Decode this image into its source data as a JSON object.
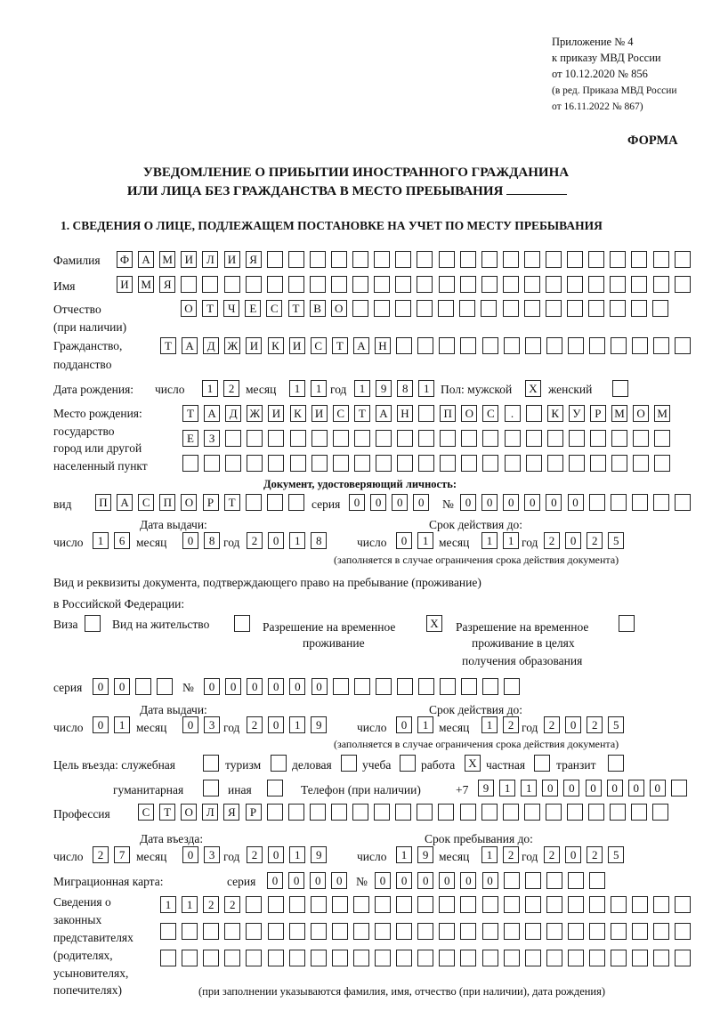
{
  "header": {
    "appendix_line1": "Приложение № 4",
    "appendix_line2": "к приказу МВД России",
    "appendix_line3": "от 10.12.2020 № 856",
    "edition_line1": "(в ред. Приказа МВД России",
    "edition_line2": "от 16.11.2022 № 867)",
    "forma": "ФОРМА",
    "title_line1": "УВЕДОМЛЕНИЕ О ПРИБЫТИИ ИНОСТРАННОГО ГРАЖДАНИНА",
    "title_line2": "ИЛИ ЛИЦА БЕЗ ГРАЖДАНСТВА В МЕСТО ПРЕБЫВАНИЯ"
  },
  "section1": {
    "heading": "1. СВЕДЕНИЯ О ЛИЦЕ, ПОДЛЕЖАЩЕМ ПОСТАНОВКЕ НА УЧЕТ ПО МЕСТУ ПРЕБЫВАНИЯ",
    "labels": {
      "surname": "Фамилия",
      "name": "Имя",
      "patronymic": "Отчество",
      "patronymic_note": "(при наличии)",
      "citizenship": "Гражданство,",
      "citizenship2": "подданство",
      "birth_date": "Дата рождения:",
      "day": "число",
      "month": "месяц",
      "year": "год",
      "sex": "Пол: мужской",
      "female": "женский",
      "birth_place": "Место рождения:",
      "birth_place2": "государство",
      "birth_place3": "город или другой",
      "birth_place4": "населенный пункт",
      "id_doc": "Документ, удостоверяющий личность:",
      "kind": "вид",
      "series": "серия",
      "number": "№",
      "issue_date": "Дата выдачи:",
      "valid_until": "Срок действия до:",
      "validity_note": "(заполняется в случае ограничения срока действия документа)",
      "right_doc1": "Вид и реквизиты документа, подтверждающего право на пребывание (проживание)",
      "right_doc2": "в Российской Федерации:",
      "visa": "Виза",
      "residence": "Вид на жительство",
      "temp_res1": "Разрешение на временное",
      "temp_res2": "проживание",
      "temp_edu1": "Разрешение на временное",
      "temp_edu2": "проживание в целях",
      "temp_edu3": "получения образования",
      "purpose": "Цель въезда: служебная",
      "tourism": "туризм",
      "business": "деловая",
      "study": "учеба",
      "work": "работа",
      "private": "частная",
      "transit": "транзит",
      "humanitarian": "гуманитарная",
      "other": "иная",
      "phone": "Телефон (при наличии)",
      "phone_prefix": "+7",
      "profession": "Профессия",
      "entry_date": "Дата въезда:",
      "stay_until": "Срок пребывания до:",
      "migration_card": "Миграционная карта:",
      "reps1": "Сведения о",
      "reps2": "законных",
      "reps3": "представителях",
      "reps4": "(родителях,",
      "reps5": "усыновителях,",
      "reps6": "попечителях)",
      "reps_note": "(при заполнении указываются фамилия, имя, отчество (при наличии), дата рождения)"
    },
    "values": {
      "surname": "ФАМИЛИЯ",
      "name": "ИМЯ",
      "patronymic": "ОТЧЕСТВО",
      "citizenship": "ТАДЖИКИСТАН",
      "birth_day": "12",
      "birth_month": "11",
      "birth_year": "1981",
      "sex_male": "X",
      "sex_female": "",
      "birth_place_row1": "ТАДЖИКИСТАН ПОС. КУРМОМБ",
      "birth_place_row2": "ЕЗ",
      "birth_place_row3": "",
      "id_kind": "ПАСПОРТ",
      "id_series": "0000",
      "id_number": "000000",
      "id_issue_day": "16",
      "id_issue_month": "08",
      "id_issue_year": "2018",
      "id_valid_day": "01",
      "id_valid_month": "11",
      "id_valid_year": "2025",
      "visa": "",
      "residence": "",
      "temp_res": "X",
      "temp_edu": "",
      "right_series": "00",
      "right_number": "000000",
      "right_issue_day": "01",
      "right_issue_month": "03",
      "right_issue_year": "2019",
      "right_valid_day": "01",
      "right_valid_month": "12",
      "right_valid_year": "2025",
      "purpose_service": "",
      "purpose_tourism": "",
      "purpose_business": "",
      "purpose_study": "",
      "purpose_work": "X",
      "purpose_private": "",
      "purpose_transit": "",
      "purpose_humanitarian": "",
      "purpose_other": "",
      "phone": "911000000",
      "profession": "СТОЛЯР",
      "entry_day": "27",
      "entry_month": "03",
      "entry_year": "2019",
      "stay_day": "19",
      "stay_month": "12",
      "stay_year": "2025",
      "mc_series": "0000",
      "mc_number": "000000",
      "reps_row1": "1122",
      "reps_row2": "",
      "reps_row3": ""
    }
  }
}
